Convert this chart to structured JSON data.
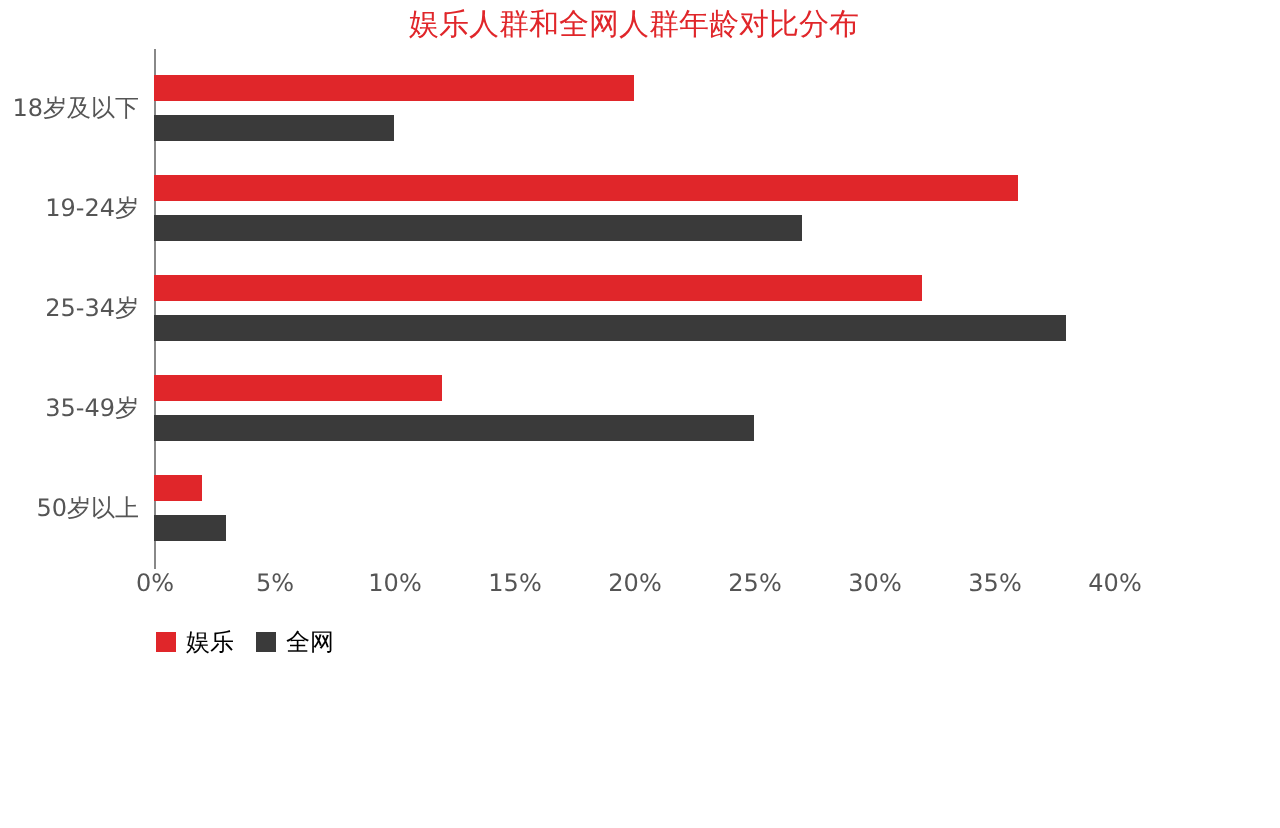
{
  "chart_data": {
    "type": "bar",
    "orientation": "horizontal",
    "title": "娱乐人群和全网人群年龄对比分布",
    "categories": [
      "18岁及以下",
      "19-24岁",
      "25-34岁",
      "35-49岁",
      "50岁以上"
    ],
    "series": [
      {
        "name": "娱乐",
        "color": "#e0262a",
        "values": [
          20,
          36,
          32,
          12,
          2
        ]
      },
      {
        "name": "全网",
        "color": "#3a3a3a",
        "values": [
          10,
          27,
          38,
          25,
          3
        ]
      }
    ],
    "xlim": [
      0,
      40
    ],
    "xticks": [
      {
        "value": 0,
        "label": "0%"
      },
      {
        "value": 5,
        "label": "5%"
      },
      {
        "value": 10,
        "label": "10%"
      },
      {
        "value": 15,
        "label": "15%"
      },
      {
        "value": 20,
        "label": "20%"
      },
      {
        "value": 25,
        "label": "25%"
      },
      {
        "value": 30,
        "label": "30%"
      },
      {
        "value": 35,
        "label": "35%"
      },
      {
        "value": 40,
        "label": "40%"
      }
    ],
    "grid": false,
    "legend": "bottom"
  }
}
